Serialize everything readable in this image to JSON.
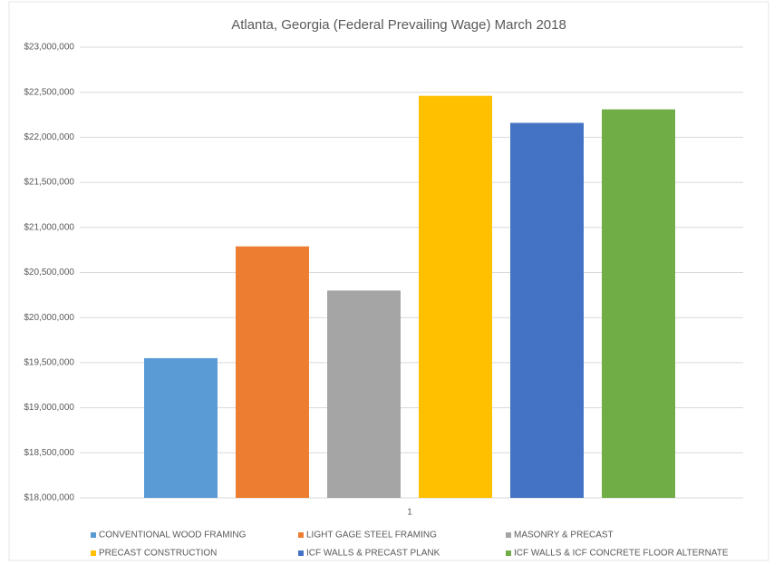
{
  "chart_data": {
    "type": "bar",
    "title": "Atlanta, Georgia (Federal Prevailing Wage) March 2018",
    "categories": [
      "1"
    ],
    "series": [
      {
        "name": "CONVENTIONAL WOOD FRAMING",
        "color": "#5b9bd5",
        "values": [
          19550000
        ]
      },
      {
        "name": "LIGHT GAGE STEEL FRAMING",
        "color": "#ed7d31",
        "values": [
          20790000
        ]
      },
      {
        "name": "MASONRY & PRECAST",
        "color": "#a5a5a5",
        "values": [
          20300000
        ]
      },
      {
        "name": "PRECAST CONSTRUCTION",
        "color": "#ffc000",
        "values": [
          22460000
        ]
      },
      {
        "name": "ICF WALLS & PRECAST PLANK",
        "color": "#4472c4",
        "values": [
          22160000
        ]
      },
      {
        "name": "ICF WALLS & ICF CONCRETE FLOOR ALTERNATE",
        "color": "#70ad47",
        "values": [
          22310000
        ]
      }
    ],
    "ylim": [
      18000000,
      23000000
    ],
    "yticks": [
      {
        "value": 18000000,
        "label": "$18,000,000"
      },
      {
        "value": 18500000,
        "label": "$18,500,000"
      },
      {
        "value": 19000000,
        "label": "$19,000,000"
      },
      {
        "value": 19500000,
        "label": "$19,500,000"
      },
      {
        "value": 20000000,
        "label": "$20,000,000"
      },
      {
        "value": 20500000,
        "label": "$20,500,000"
      },
      {
        "value": 21000000,
        "label": "$21,000,000"
      },
      {
        "value": 21500000,
        "label": "$21,500,000"
      },
      {
        "value": 22000000,
        "label": "$22,000,000"
      },
      {
        "value": 22500000,
        "label": "$22,500,000"
      },
      {
        "value": 23000000,
        "label": "$23,000,000"
      }
    ],
    "grid": true,
    "legend": "bottom"
  }
}
